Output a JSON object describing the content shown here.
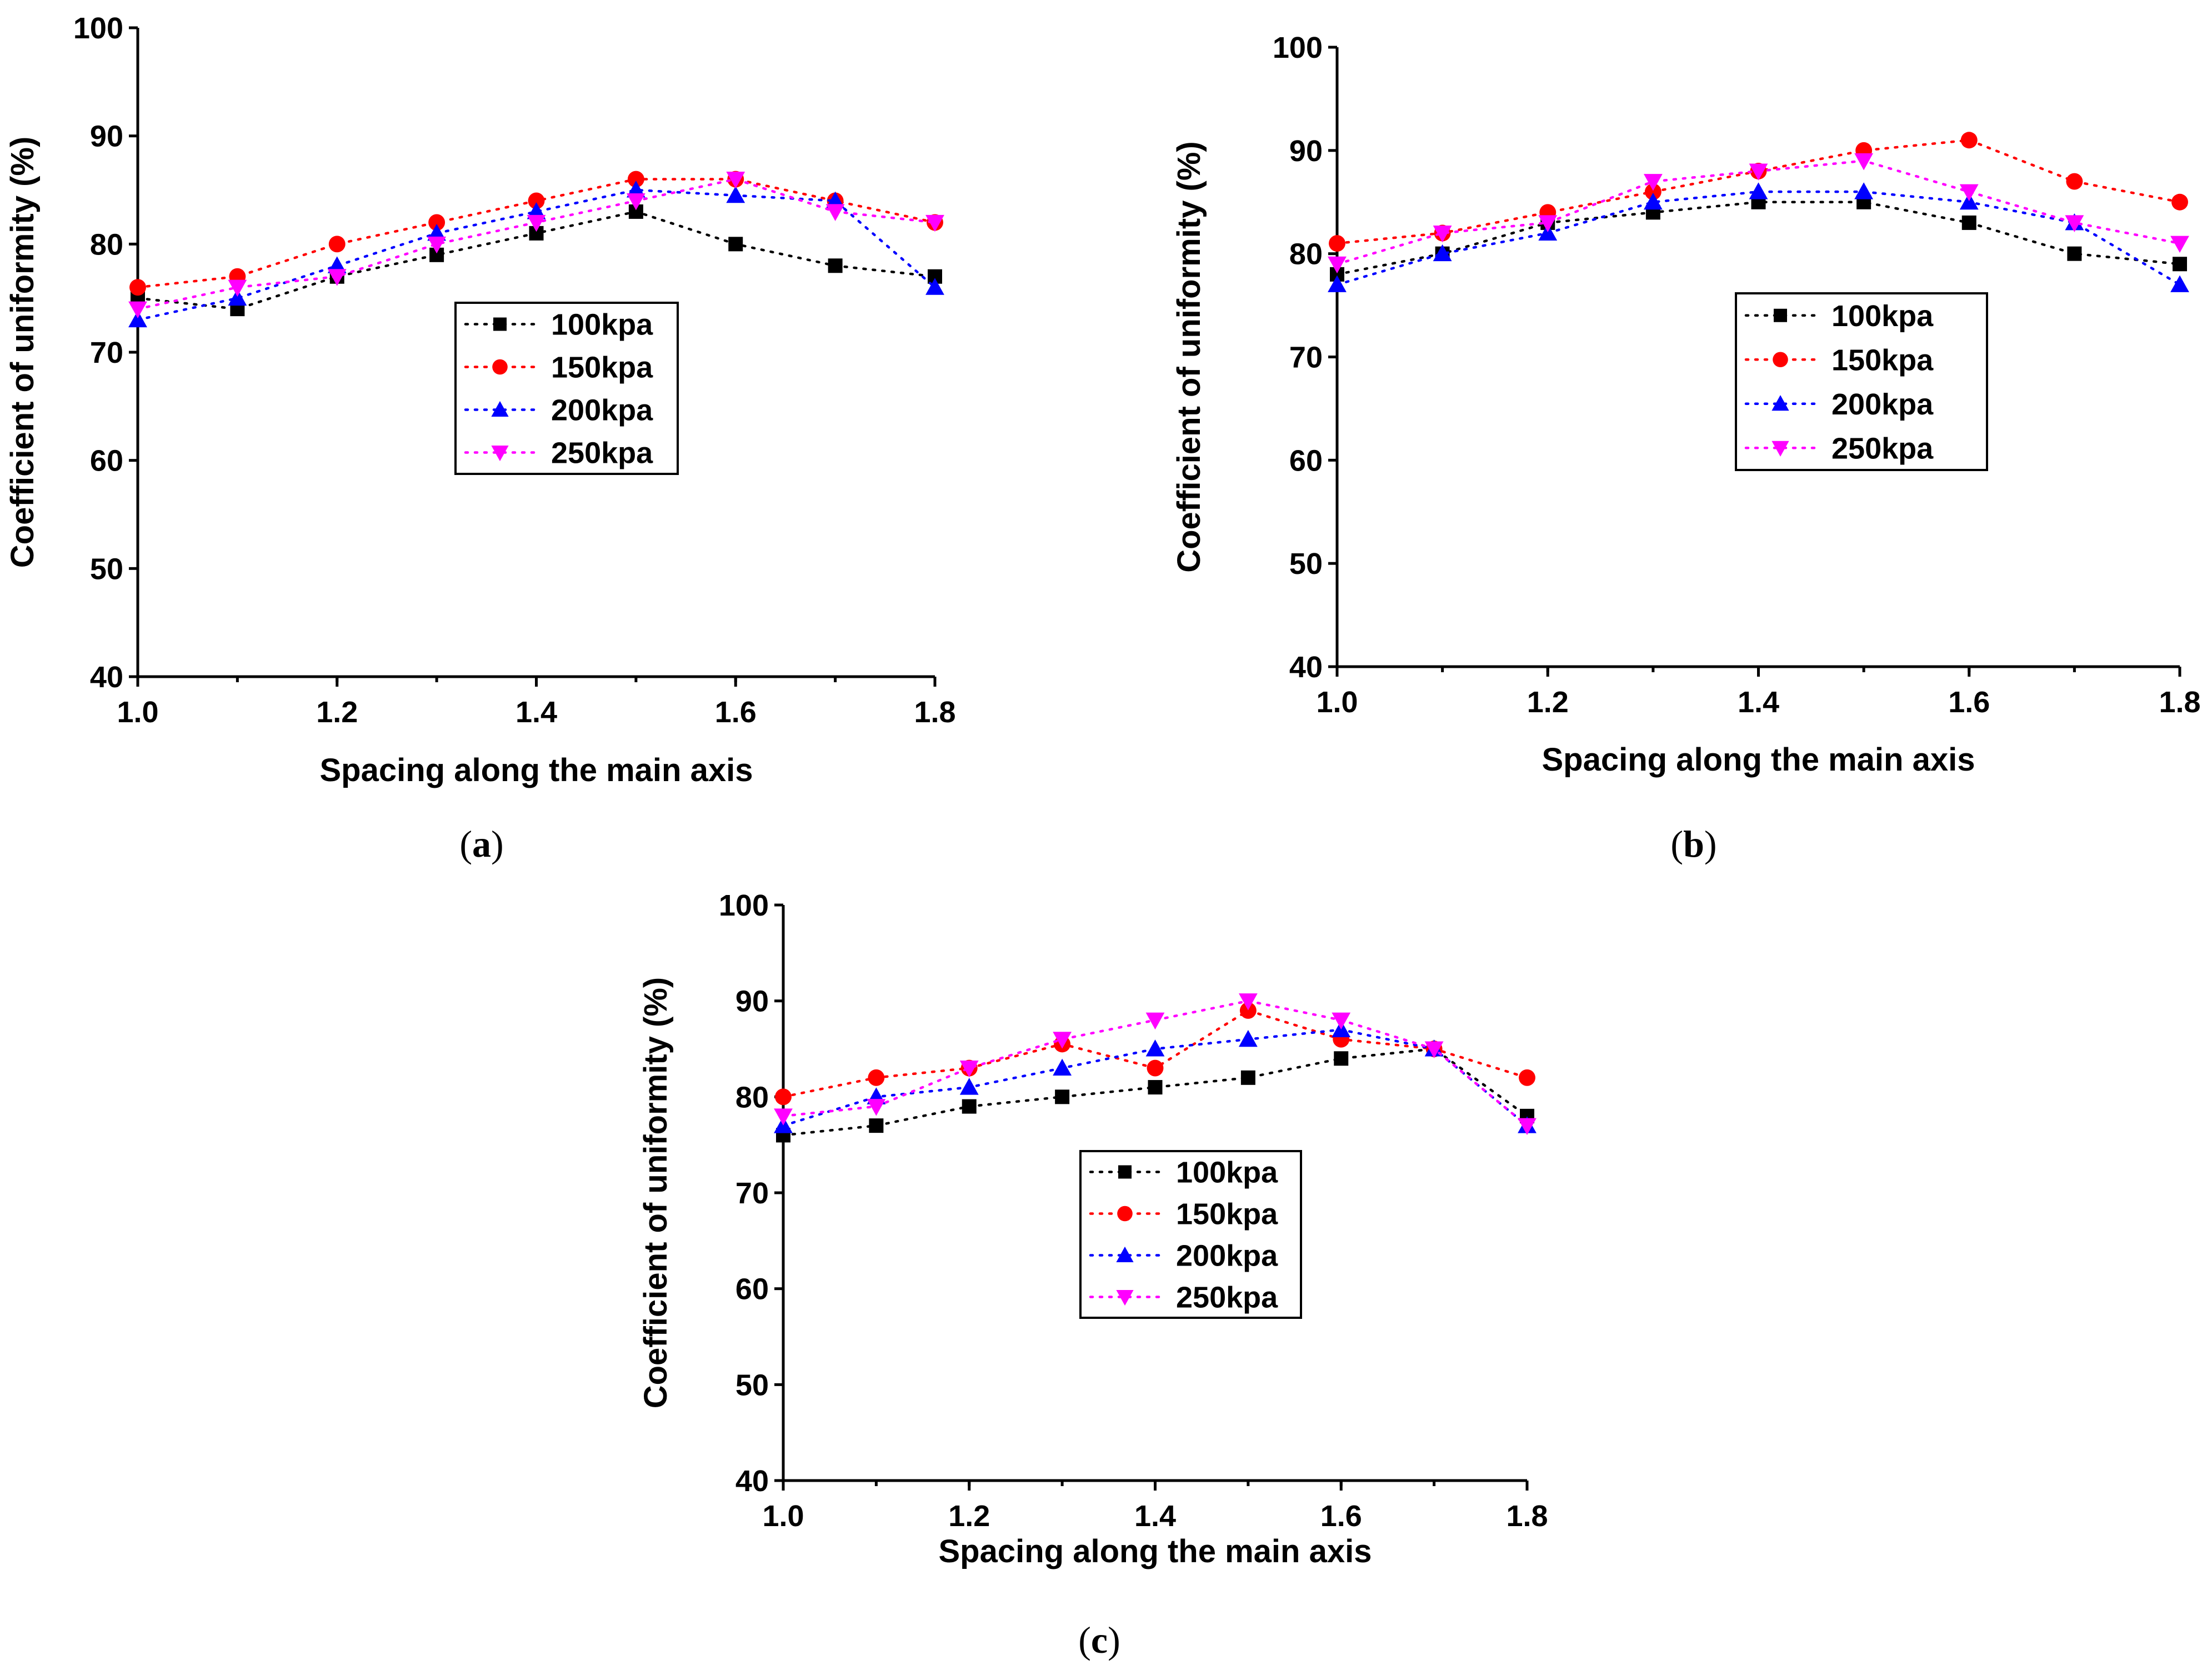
{
  "chart_data": [
    {
      "type": "line",
      "caption": "a",
      "xlabel": "Spacing along the main axis",
      "ylabel": "Coefficient of uniformity (%)",
      "xlim": [
        1.0,
        1.8
      ],
      "ylim": [
        40,
        100
      ],
      "xticks": [
        "1.0",
        "1.2",
        "1.4",
        "1.6",
        "1.8"
      ],
      "yticks": [
        "40",
        "50",
        "60",
        "70",
        "80",
        "90",
        "100"
      ],
      "x": [
        1.0,
        1.1,
        1.2,
        1.3,
        1.4,
        1.5,
        1.6,
        1.7,
        1.8
      ],
      "legend_position": "center",
      "series": [
        {
          "name": "100kpa",
          "values": [
            75,
            74,
            77,
            79,
            81,
            83,
            80,
            78,
            77
          ]
        },
        {
          "name": "150kpa",
          "values": [
            76,
            77,
            80,
            82,
            84,
            86,
            86,
            84,
            82
          ]
        },
        {
          "name": "200kpa",
          "values": [
            73,
            75,
            78,
            81,
            83,
            85,
            84.5,
            84,
            76
          ]
        },
        {
          "name": "250kpa",
          "values": [
            74,
            76,
            77,
            80,
            82,
            84,
            86,
            83,
            82
          ]
        }
      ]
    },
    {
      "type": "line",
      "caption": "b",
      "xlabel": "Spacing along the main axis",
      "ylabel": "Coefficient of uniformity (%)",
      "xlim": [
        1.0,
        1.8
      ],
      "ylim": [
        40,
        100
      ],
      "xticks": [
        "1.0",
        "1.2",
        "1.4",
        "1.6",
        "1.8"
      ],
      "yticks": [
        "40",
        "50",
        "60",
        "70",
        "80",
        "90",
        "100"
      ],
      "x": [
        1.0,
        1.1,
        1.2,
        1.3,
        1.4,
        1.5,
        1.6,
        1.7,
        1.8
      ],
      "legend_position": "center-right",
      "series": [
        {
          "name": "100kpa",
          "values": [
            78,
            80,
            83,
            84,
            85,
            85,
            83,
            80,
            79
          ]
        },
        {
          "name": "150kpa",
          "values": [
            81,
            82,
            84,
            86,
            88,
            90,
            91,
            87,
            85
          ]
        },
        {
          "name": "200kpa",
          "values": [
            77,
            80,
            82,
            85,
            86,
            86,
            85,
            83,
            77
          ]
        },
        {
          "name": "250kpa",
          "values": [
            79,
            82,
            83,
            87,
            88,
            89,
            86,
            83,
            81
          ]
        }
      ]
    },
    {
      "type": "line",
      "caption": "c",
      "xlabel": "Spacing along the main axis",
      "ylabel": "Coefficient of uniformity (%)",
      "xlim": [
        1.0,
        1.8
      ],
      "ylim": [
        40,
        100
      ],
      "xticks": [
        "1.0",
        "1.2",
        "1.4",
        "1.6",
        "1.8"
      ],
      "yticks": [
        "40",
        "50",
        "60",
        "70",
        "80",
        "90",
        "100"
      ],
      "x": [
        1.0,
        1.1,
        1.2,
        1.3,
        1.4,
        1.5,
        1.6,
        1.7,
        1.8
      ],
      "legend_position": "center",
      "series": [
        {
          "name": "100kpa",
          "values": [
            76,
            77,
            79,
            80,
            81,
            82,
            84,
            85,
            78
          ]
        },
        {
          "name": "150kpa",
          "values": [
            80,
            82,
            83,
            85.5,
            83,
            89,
            86,
            85,
            82
          ]
        },
        {
          "name": "200kpa",
          "values": [
            77,
            80,
            81,
            83,
            85,
            86,
            87,
            85,
            77
          ]
        },
        {
          "name": "250kpa",
          "values": [
            78,
            79,
            83,
            86,
            88,
            90,
            88,
            85,
            77
          ]
        }
      ]
    }
  ],
  "series_styles": [
    {
      "color": "#000000",
      "marker": "square"
    },
    {
      "color": "#ff0000",
      "marker": "circle"
    },
    {
      "color": "#0000ff",
      "marker": "triangle-up"
    },
    {
      "color": "#ff00ff",
      "marker": "triangle-down"
    }
  ]
}
